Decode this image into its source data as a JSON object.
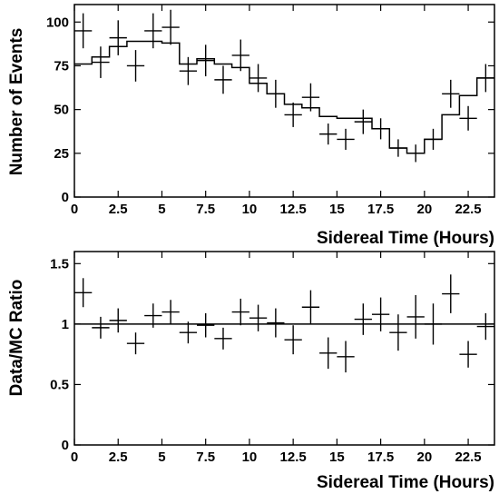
{
  "chart_data": [
    {
      "type": "scatter",
      "xlabel": "Sidereal Time (Hours)",
      "ylabel": "Number of Events",
      "xlim": [
        0,
        24
      ],
      "ylim": [
        0,
        110
      ],
      "xticks": [
        "0",
        "2.5",
        "5",
        "7.5",
        "10",
        "12.5",
        "15",
        "17.5",
        "20",
        "22.5"
      ],
      "yticks": [
        "0",
        "25",
        "50",
        "75",
        "100"
      ],
      "grid": false,
      "series": [
        {
          "kind": "points-with-errors",
          "x": [
            0.5,
            1.5,
            2.5,
            3.5,
            4.5,
            5.5,
            6.5,
            7.5,
            8.5,
            9.5,
            10.5,
            11.5,
            12.5,
            13.5,
            14.5,
            15.5,
            16.5,
            17.5,
            18.5,
            19.5,
            20.5,
            21.5,
            22.5,
            23.5
          ],
          "y": [
            95,
            77,
            91,
            75,
            95,
            97,
            72,
            78,
            67,
            81,
            68,
            59,
            47,
            57,
            36,
            33,
            43,
            39,
            28,
            25,
            33,
            59,
            45,
            68
          ],
          "y_error": [
            10,
            9,
            10,
            9,
            10,
            10,
            8,
            9,
            8,
            9,
            8,
            8,
            7,
            8,
            6,
            6,
            7,
            6,
            5,
            5,
            6,
            8,
            7,
            8
          ],
          "x_error": 0.5
        },
        {
          "kind": "step-histogram",
          "x": [
            0.5,
            1.5,
            2.5,
            3.5,
            4.5,
            5.5,
            6.5,
            7.5,
            8.5,
            9.5,
            10.5,
            11.5,
            12.5,
            13.5,
            14.5,
            15.5,
            16.5,
            17.5,
            18.5,
            19.5,
            20.5,
            21.5,
            22.5,
            23.5
          ],
          "y": [
            76,
            80,
            86,
            89,
            89,
            88,
            76,
            79,
            76,
            74,
            65,
            59,
            53,
            51,
            46,
            45,
            45,
            39,
            28,
            25,
            33,
            47,
            58,
            68
          ]
        }
      ]
    },
    {
      "type": "scatter",
      "xlabel": "Sidereal Time (Hours)",
      "ylabel": "Data/MC Ratio",
      "xlim": [
        0,
        24
      ],
      "ylim": [
        0,
        1.6
      ],
      "xticks": [
        "0",
        "2.5",
        "5",
        "7.5",
        "10",
        "12.5",
        "15",
        "17.5",
        "20",
        "22.5"
      ],
      "yticks": [
        "0",
        "0.5",
        "1",
        "1.5"
      ],
      "reference_line": 1,
      "grid": false,
      "series": [
        {
          "kind": "points-with-errors",
          "x": [
            0.5,
            1.5,
            2.5,
            3.5,
            4.5,
            5.5,
            6.5,
            7.5,
            8.5,
            9.5,
            10.5,
            11.5,
            12.5,
            13.5,
            14.5,
            15.5,
            16.5,
            17.5,
            18.5,
            19.5,
            20.5,
            21.5,
            22.5,
            23.5
          ],
          "y": [
            1.26,
            0.97,
            1.03,
            0.84,
            1.07,
            1.1,
            0.93,
            0.99,
            0.88,
            1.1,
            1.05,
            1.01,
            0.87,
            1.14,
            0.76,
            0.73,
            1.04,
            1.08,
            0.93,
            1.06,
            1.0,
            1.25,
            0.75,
            0.98
          ],
          "y_error": [
            0.12,
            0.09,
            0.1,
            0.09,
            0.1,
            0.1,
            0.09,
            0.1,
            0.09,
            0.11,
            0.11,
            0.12,
            0.12,
            0.14,
            0.13,
            0.13,
            0.13,
            0.14,
            0.15,
            0.18,
            0.17,
            0.16,
            0.11,
            0.11
          ],
          "x_error": 0.5
        }
      ]
    }
  ]
}
